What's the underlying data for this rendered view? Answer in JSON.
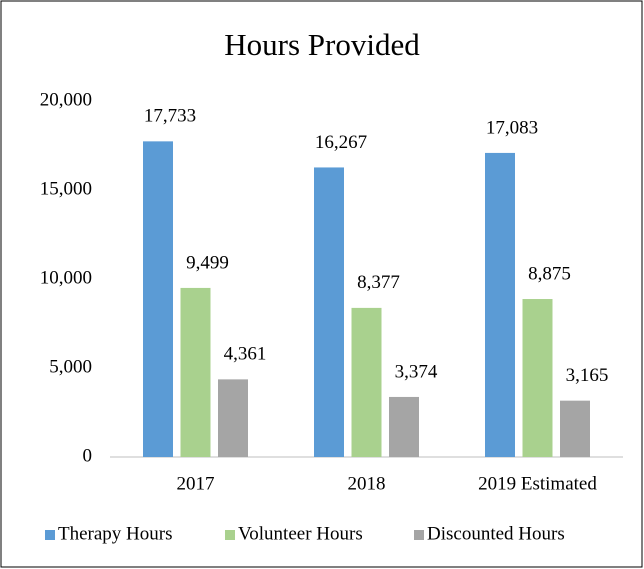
{
  "chart_data": {
    "type": "bar",
    "title": "Hours Provided",
    "categories": [
      "2017",
      "2018",
      "2019 Estimated"
    ],
    "series": [
      {
        "name": "Therapy Hours",
        "color": "#5b9bd5",
        "values": [
          17733,
          16267,
          17083
        ],
        "value_labels": [
          "17,733",
          "16,267",
          "17,083"
        ]
      },
      {
        "name": "Volunteer Hours",
        "color": "#a9d18e",
        "values": [
          9499,
          8377,
          8875
        ],
        "value_labels": [
          "9,499",
          "8,377",
          "8,875"
        ]
      },
      {
        "name": "Discounted Hours",
        "color": "#a5a5a5",
        "values": [
          4361,
          3374,
          3165
        ],
        "value_labels": [
          "4,361",
          "3,374",
          "3,165"
        ]
      }
    ],
    "ylim": [
      0,
      20000
    ],
    "yticks": [
      0,
      {
        "value": 5000,
        "label": "5,000"
      },
      {
        "value": 10000,
        "label": "10,000"
      },
      {
        "value": 15000,
        "label": "15,000"
      },
      {
        "value": 20000,
        "label": "20,000"
      }
    ],
    "grid": false,
    "legend": "bottom"
  }
}
